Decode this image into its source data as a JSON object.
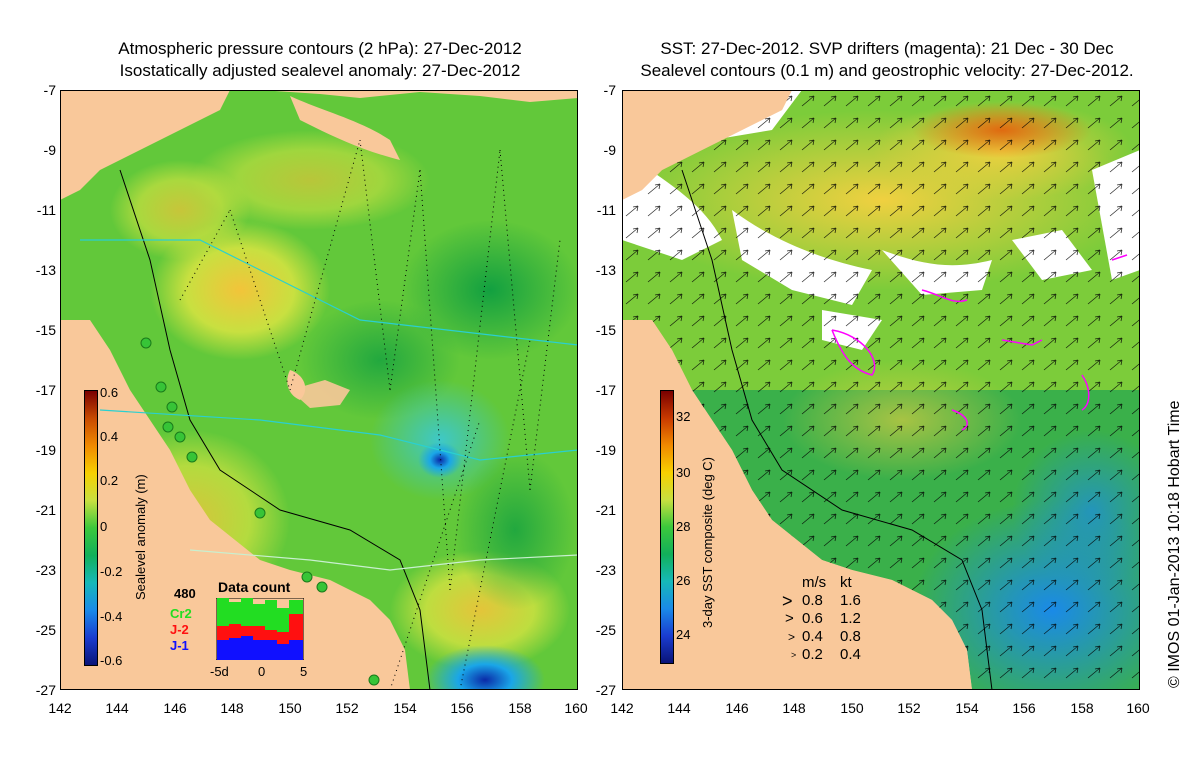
{
  "left_map": {
    "title_line1": "Atmospheric pressure contours (2 hPa): 27-Dec-2012",
    "title_line2": "Isostatically adjusted sealevel anomaly: 27-Dec-2012",
    "colorbar": {
      "label": "Sealevel anomaly (m)",
      "ticks": [
        "0.6",
        "0.4",
        "0.2",
        "0",
        "-0.2",
        "-0.4",
        "-0.6"
      ]
    },
    "data_count": {
      "title": "Data count",
      "max_label": "480",
      "cr2_label": "Cr2",
      "j2_label": "J-2",
      "j1_label": "J-1",
      "x_min_label": "-5d",
      "x_mid_label": "0",
      "x_max_label": "5",
      "colors": {
        "cr2": "#22dd22",
        "j2": "#ff1010",
        "j1": "#1010ff"
      }
    }
  },
  "right_map": {
    "title_line1": "SST: 27-Dec-2012. SVP drifters (magenta): 21 Dec - 30 Dec",
    "title_line2": "Sealevel contours (0.1 m) and geostrophic velocity: 27-Dec-2012.",
    "colorbar": {
      "label": "3-day SST composite (deg C)",
      "ticks": [
        "32",
        "30",
        "28",
        "26",
        "24"
      ]
    },
    "velocity_legend": {
      "header_ms": "m/s",
      "header_kt": "kt",
      "rows": [
        {
          "ms": "0.8",
          "kt": "1.6"
        },
        {
          "ms": "0.6",
          "kt": "1.2"
        },
        {
          "ms": "0.4",
          "kt": "0.8"
        },
        {
          "ms": "0.2",
          "kt": "0.4"
        }
      ]
    }
  },
  "axes": {
    "y_ticks": [
      "-7",
      "-9",
      "-11",
      "-13",
      "-15",
      "-17",
      "-19",
      "-21",
      "-23",
      "-25",
      "-27"
    ],
    "x_ticks": [
      "142",
      "144",
      "146",
      "148",
      "150",
      "152",
      "154",
      "156",
      "158",
      "160"
    ]
  },
  "credit": "© IMOS 01-Jan-2013 10:18 Hobart Time",
  "colors": {
    "land": "#f9c89a",
    "sst_white": "#ffffff",
    "drifter": "#ff00ff"
  }
}
